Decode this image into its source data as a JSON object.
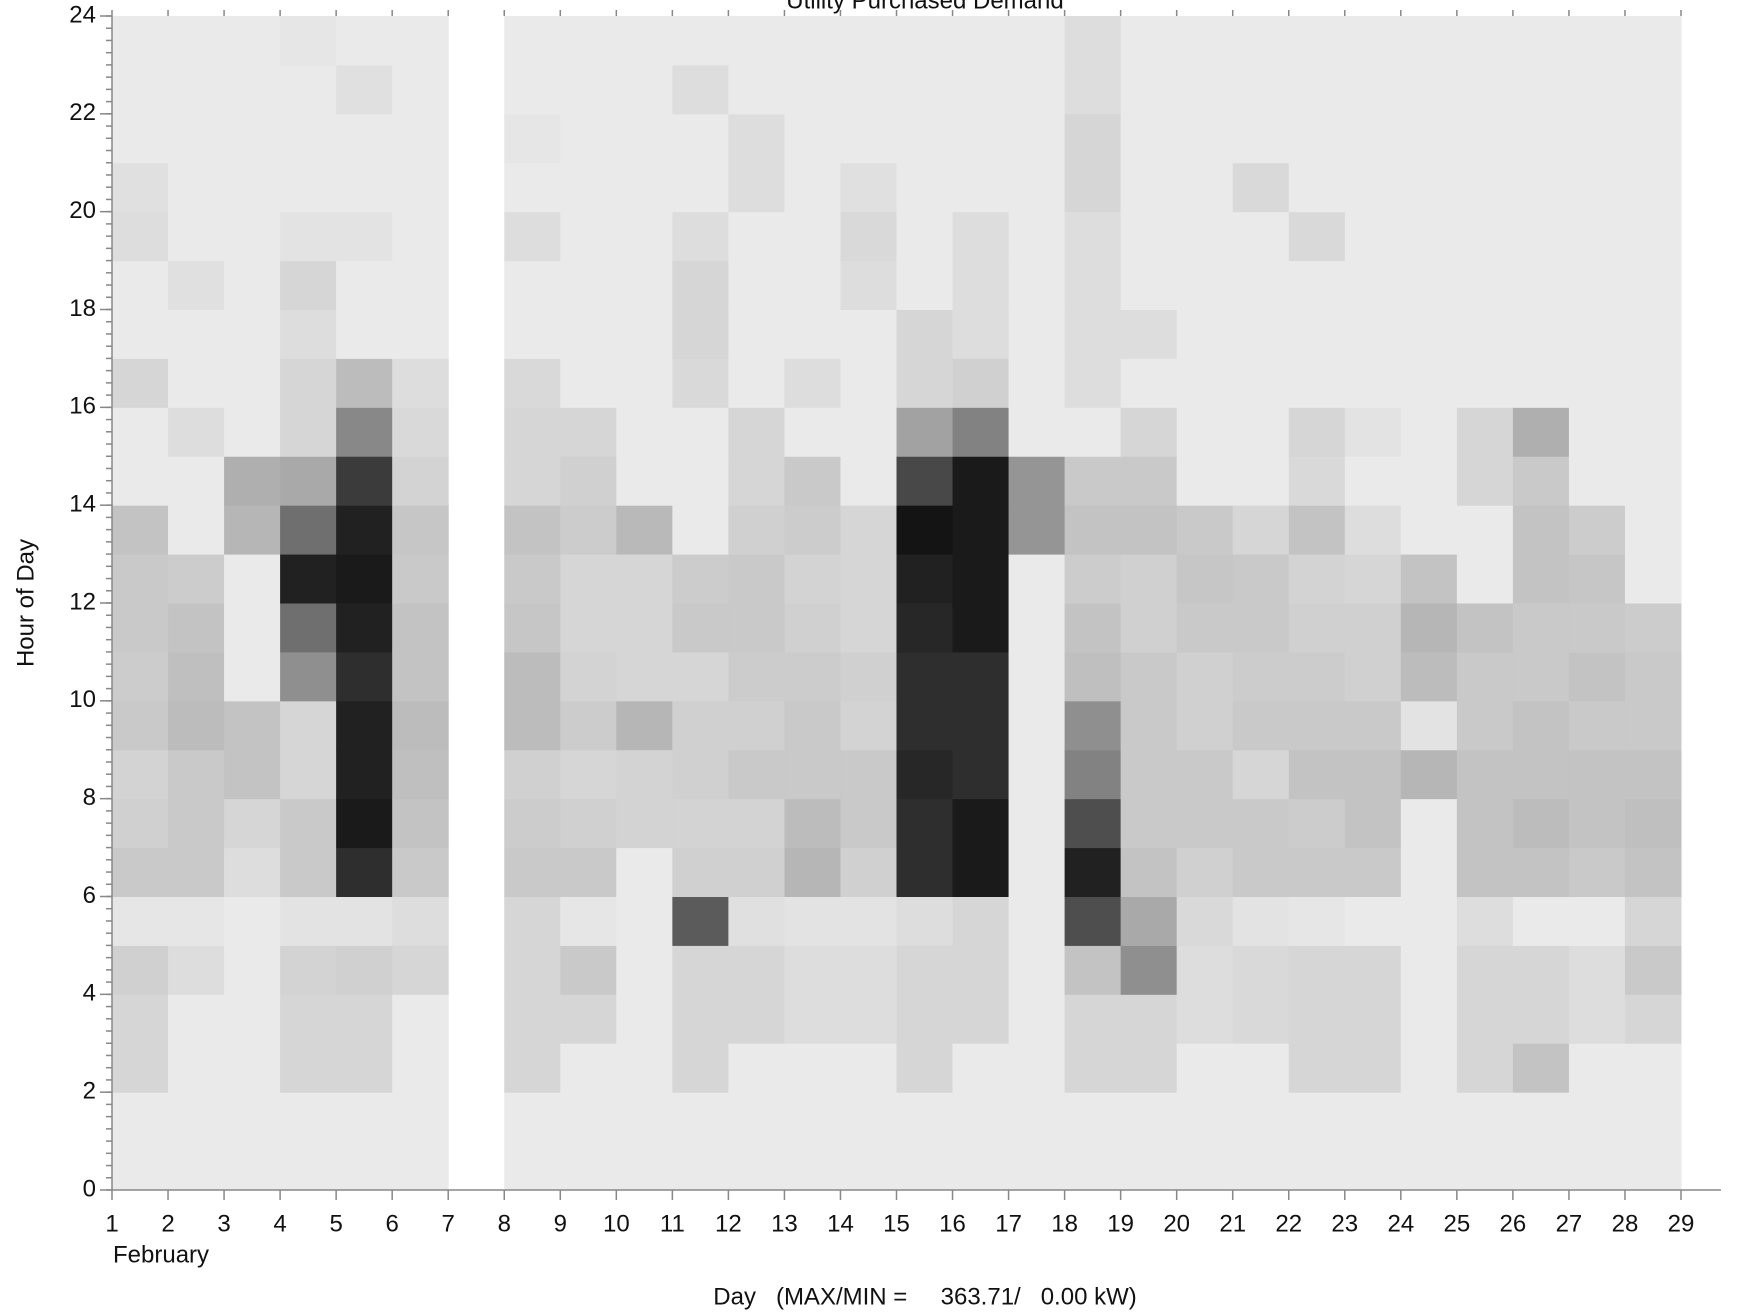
{
  "chart_data": {
    "type": "heatmap",
    "title": "Utility Purchased Demand",
    "x_label": "Day   (MAX/MIN =     363.71/   0.00 kW)",
    "x_sublabel": "February",
    "y_label": "Hour of Day",
    "x": [
      1,
      2,
      3,
      4,
      5,
      6,
      7,
      8,
      9,
      10,
      11,
      12,
      13,
      14,
      15,
      16,
      17,
      18,
      19,
      20,
      21,
      22,
      23,
      24,
      25,
      26,
      27,
      28
    ],
    "y": [
      0,
      1,
      2,
      3,
      4,
      5,
      6,
      7,
      8,
      9,
      10,
      11,
      12,
      13,
      14,
      15,
      16,
      17,
      18,
      19,
      20,
      21,
      22,
      23
    ],
    "z": [
      [
        10,
        10,
        40,
        40,
        50,
        15,
        60,
        50,
        45,
        60,
        55,
        60,
        60,
        70,
        10,
        10,
        40,
        10,
        10,
        30,
        25,
        10,
        10,
        10
      ],
      [
        10,
        10,
        10,
        10,
        30,
        15,
        60,
        60,
        60,
        80,
        75,
        70,
        55,
        10,
        10,
        30,
        10,
        10,
        25,
        10,
        10,
        10,
        10,
        10
      ],
      [
        10,
        10,
        10,
        10,
        10,
        10,
        30,
        40,
        70,
        70,
        10,
        10,
        10,
        90,
        100,
        10,
        10,
        10,
        10,
        10,
        10,
        10,
        10,
        10
      ],
      [
        10,
        10,
        40,
        40,
        45,
        20,
        60,
        60,
        40,
        40,
        150,
        200,
        320,
        200,
        110,
        40,
        40,
        30,
        40,
        20,
        10,
        10,
        10,
        15
      ],
      [
        10,
        10,
        40,
        40,
        50,
        20,
        300,
        330,
        320,
        320,
        300,
        320,
        330,
        320,
        280,
        160,
        80,
        10,
        10,
        20,
        10,
        10,
        25,
        10
      ],
      [
        10,
        10,
        10,
        10,
        40,
        30,
        60,
        70,
        75,
        80,
        70,
        70,
        60,
        65,
        45,
        35,
        30,
        10,
        10,
        10,
        10,
        10,
        10,
        10
      ],
      [
        null,
        null,
        null,
        null,
        null,
        null,
        null,
        null,
        null,
        null,
        null,
        null,
        null,
        null,
        null,
        null,
        null,
        null,
        null,
        null,
        null,
        null,
        null,
        null
      ],
      [
        10,
        10,
        40,
        40,
        40,
        40,
        60,
        55,
        50,
        80,
        80,
        65,
        60,
        70,
        40,
        40,
        35,
        10,
        10,
        30,
        10,
        15,
        10,
        10
      ],
      [
        10,
        10,
        10,
        40,
        60,
        15,
        60,
        50,
        40,
        55,
        45,
        40,
        40,
        55,
        50,
        40,
        10,
        10,
        10,
        10,
        10,
        10,
        10,
        10
      ],
      [
        10,
        10,
        10,
        10,
        10,
        10,
        10,
        45,
        45,
        90,
        40,
        40,
        40,
        85,
        10,
        10,
        10,
        10,
        10,
        10,
        10,
        10,
        10,
        10
      ],
      [
        10,
        10,
        40,
        40,
        40,
        230,
        50,
        45,
        50,
        50,
        40,
        60,
        55,
        10,
        10,
        10,
        35,
        40,
        40,
        30,
        10,
        10,
        30,
        10
      ],
      [
        10,
        10,
        10,
        40,
        40,
        25,
        50,
        45,
        60,
        50,
        55,
        60,
        60,
        50,
        40,
        40,
        10,
        10,
        10,
        10,
        30,
        30,
        10,
        10
      ],
      [
        10,
        10,
        10,
        30,
        30,
        20,
        90,
        80,
        60,
        60,
        55,
        50,
        45,
        55,
        60,
        10,
        30,
        10,
        10,
        10,
        10,
        10,
        10,
        10
      ],
      [
        10,
        10,
        10,
        30,
        30,
        20,
        50,
        60,
        60,
        45,
        50,
        40,
        40,
        40,
        10,
        10,
        10,
        10,
        30,
        35,
        25,
        10,
        10,
        10
      ],
      [
        10,
        10,
        40,
        40,
        40,
        30,
        300,
        300,
        310,
        300,
        300,
        310,
        320,
        340,
        260,
        120,
        40,
        40,
        10,
        10,
        10,
        10,
        10,
        10
      ],
      [
        10,
        10,
        10,
        40,
        40,
        40,
        330,
        330,
        300,
        300,
        300,
        330,
        330,
        330,
        330,
        170,
        50,
        30,
        30,
        30,
        10,
        10,
        10,
        10
      ],
      [
        10,
        10,
        10,
        10,
        10,
        10,
        10,
        10,
        10,
        10,
        10,
        10,
        10,
        140,
        140,
        10,
        10,
        10,
        10,
        10,
        10,
        10,
        10,
        10
      ],
      [
        10,
        10,
        40,
        40,
        70,
        250,
        320,
        250,
        170,
        150,
        75,
        70,
        55,
        70,
        60,
        10,
        30,
        30,
        30,
        30,
        40,
        40,
        30,
        30
      ],
      [
        10,
        10,
        40,
        40,
        150,
        110,
        70,
        60,
        60,
        60,
        60,
        50,
        50,
        70,
        60,
        40,
        10,
        30,
        10,
        10,
        10,
        10,
        10,
        10
      ],
      [
        10,
        10,
        10,
        30,
        30,
        35,
        50,
        60,
        60,
        50,
        50,
        60,
        65,
        60,
        10,
        10,
        10,
        10,
        10,
        10,
        10,
        10,
        10,
        10
      ],
      [
        10,
        10,
        10,
        35,
        35,
        20,
        60,
        60,
        40,
        60,
        55,
        60,
        60,
        40,
        10,
        10,
        10,
        10,
        10,
        10,
        35,
        10,
        10,
        10
      ],
      [
        10,
        10,
        40,
        40,
        40,
        15,
        60,
        55,
        70,
        60,
        55,
        50,
        45,
        70,
        35,
        40,
        10,
        10,
        10,
        35,
        10,
        10,
        10,
        10
      ],
      [
        10,
        10,
        40,
        40,
        40,
        10,
        60,
        70,
        70,
        60,
        50,
        50,
        40,
        30,
        10,
        20,
        10,
        10,
        10,
        10,
        10,
        10,
        10,
        10
      ],
      [
        10,
        10,
        10,
        10,
        10,
        10,
        10,
        10,
        90,
        20,
        80,
        90,
        70,
        10,
        10,
        10,
        10,
        10,
        10,
        10,
        10,
        10,
        10,
        10
      ],
      [
        10,
        10,
        40,
        40,
        40,
        30,
        70,
        70,
        70,
        60,
        60,
        70,
        10,
        10,
        40,
        40,
        10,
        10,
        10,
        10,
        10,
        10,
        10,
        10
      ],
      [
        10,
        10,
        70,
        40,
        40,
        10,
        70,
        80,
        70,
        70,
        60,
        60,
        70,
        70,
        60,
        100,
        10,
        10,
        10,
        10,
        10,
        10,
        10,
        10
      ],
      [
        10,
        10,
        10,
        30,
        30,
        10,
        60,
        70,
        70,
        60,
        70,
        60,
        65,
        55,
        10,
        10,
        10,
        10,
        10,
        10,
        10,
        10,
        10,
        10
      ],
      [
        10,
        10,
        10,
        40,
        60,
        40,
        70,
        75,
        70,
        60,
        60,
        55,
        10,
        10,
        10,
        10,
        10,
        10,
        10,
        10,
        10,
        10,
        10,
        10
      ]
    ],
    "xlim": [
      1,
      29
    ],
    "xticks": [
      1,
      2,
      3,
      4,
      5,
      6,
      7,
      8,
      9,
      10,
      11,
      12,
      13,
      14,
      15,
      16,
      17,
      18,
      19,
      20,
      21,
      22,
      23,
      24,
      25,
      26,
      27,
      28,
      29
    ],
    "ylim": [
      0,
      24
    ],
    "yticks": [
      0,
      2,
      4,
      6,
      8,
      10,
      12,
      14,
      16,
      18,
      20,
      22,
      24
    ],
    "colormap": "gray-reversed"
  }
}
